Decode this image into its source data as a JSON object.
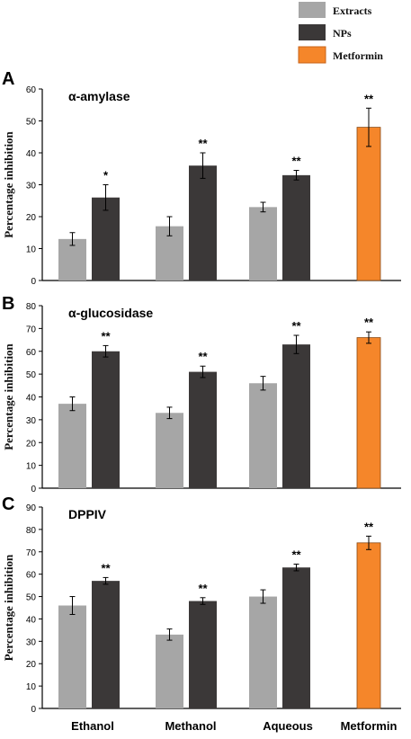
{
  "legend": {
    "items": [
      {
        "label": "Extracts",
        "color": "#a6a6a6"
      },
      {
        "label": "NPs",
        "color": "#3b3838"
      },
      {
        "label": "Metformin",
        "color": "#f5862a"
      }
    ]
  },
  "groups": [
    "Ethanol",
    "Methanol",
    "Aqueous",
    "Metformin"
  ],
  "chart_data": [
    {
      "type": "bar",
      "panel_letter": "A",
      "title": "α-amylase",
      "ylabel": "Percentage inhibition",
      "ylim": [
        0,
        60
      ],
      "yticks": [
        0,
        10,
        20,
        30,
        40,
        50,
        60
      ],
      "categories": [
        "Ethanol",
        "Methanol",
        "Aqueous",
        "Metformin"
      ],
      "series": [
        {
          "name": "Extracts",
          "values": [
            13,
            17,
            23,
            null
          ],
          "errors": [
            2,
            3,
            1.5,
            null
          ],
          "sig": [
            "",
            "",
            "",
            ""
          ]
        },
        {
          "name": "NPs",
          "values": [
            26,
            36,
            33,
            null
          ],
          "errors": [
            4,
            4,
            1.5,
            null
          ],
          "sig": [
            "*",
            "**",
            "**",
            ""
          ]
        },
        {
          "name": "Metformin",
          "values": [
            null,
            null,
            null,
            48
          ],
          "errors": [
            null,
            null,
            null,
            6
          ],
          "sig": [
            "",
            "",
            "",
            "**"
          ]
        }
      ]
    },
    {
      "type": "bar",
      "panel_letter": "B",
      "title": "α-glucosidase",
      "ylabel": "Percentage inhibition",
      "ylim": [
        0,
        80
      ],
      "yticks": [
        0,
        10,
        20,
        30,
        40,
        50,
        60,
        70,
        80
      ],
      "categories": [
        "Ethanol",
        "Methanol",
        "Aqueous",
        "Metformin"
      ],
      "series": [
        {
          "name": "Extracts",
          "values": [
            37,
            33,
            46,
            null
          ],
          "errors": [
            3,
            2.5,
            3,
            null
          ],
          "sig": [
            "",
            "",
            "",
            ""
          ]
        },
        {
          "name": "NPs",
          "values": [
            60,
            51,
            63,
            null
          ],
          "errors": [
            2.5,
            2.5,
            4,
            null
          ],
          "sig": [
            "**",
            "**",
            "**",
            ""
          ]
        },
        {
          "name": "Metformin",
          "values": [
            null,
            null,
            null,
            66
          ],
          "errors": [
            null,
            null,
            null,
            2.5
          ],
          "sig": [
            "",
            "",
            "",
            "**"
          ]
        }
      ]
    },
    {
      "type": "bar",
      "panel_letter": "C",
      "title": "DPPIV",
      "ylabel": "Percentage inhibition",
      "ylim": [
        0,
        90
      ],
      "yticks": [
        0,
        10,
        20,
        30,
        40,
        50,
        60,
        70,
        80,
        90
      ],
      "categories": [
        "Ethanol",
        "Methanol",
        "Aqueous",
        "Metformin"
      ],
      "series": [
        {
          "name": "Extracts",
          "values": [
            46,
            33,
            50,
            null
          ],
          "errors": [
            4,
            2.5,
            3,
            null
          ],
          "sig": [
            "",
            "",
            "",
            ""
          ]
        },
        {
          "name": "NPs",
          "values": [
            57,
            48,
            63,
            null
          ],
          "errors": [
            1.5,
            1.5,
            1.5,
            null
          ],
          "sig": [
            "**",
            "**",
            "**",
            ""
          ]
        },
        {
          "name": "Metformin",
          "values": [
            null,
            null,
            null,
            74
          ],
          "errors": [
            null,
            null,
            null,
            3
          ],
          "sig": [
            "",
            "",
            "",
            "**"
          ]
        }
      ]
    }
  ]
}
